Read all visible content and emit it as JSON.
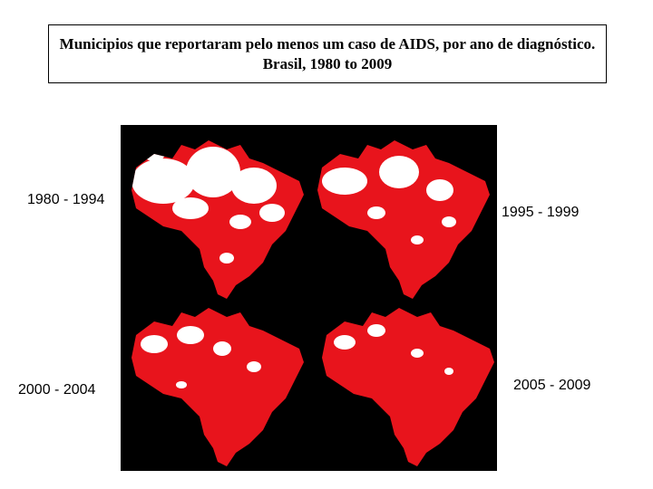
{
  "title": "Municipios que reportaram  pelo menos um caso de AIDS, por ano de diagnóstico. Brasil, 1980 to 2009",
  "maps": [
    {
      "label": "1980 - 1994"
    },
    {
      "label": "1995 - 1999"
    },
    {
      "label": "2000 - 2004"
    },
    {
      "label": "2005 - 2009"
    }
  ]
}
